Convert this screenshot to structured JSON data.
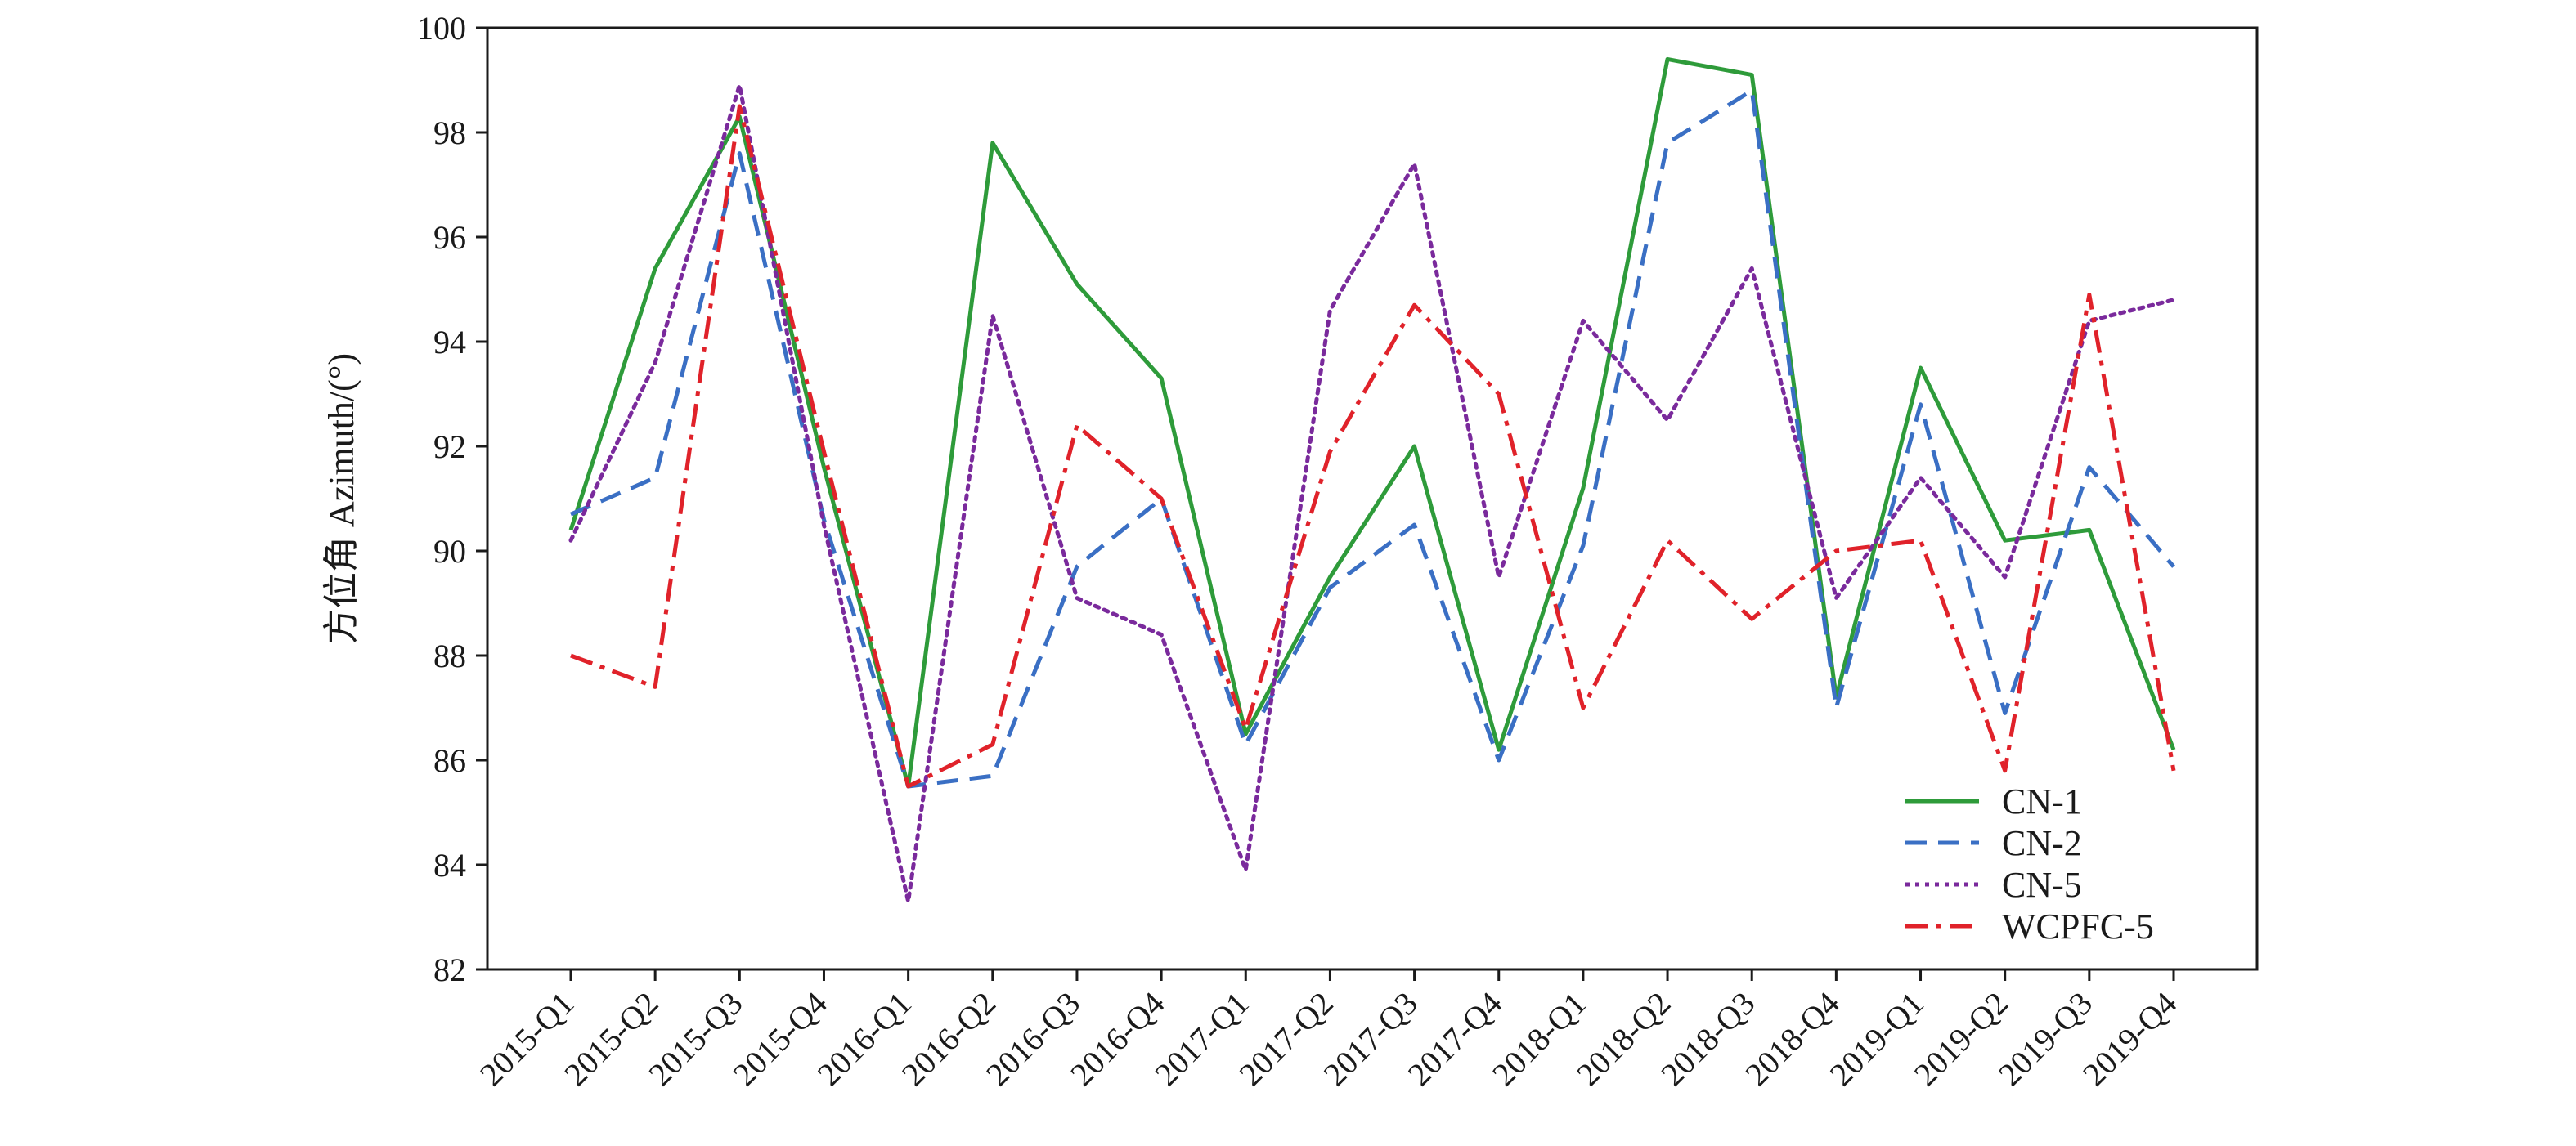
{
  "chart_data": {
    "type": "line",
    "ylabel": "方位角 Azimuth/(°)",
    "xlabel": "",
    "ylim": [
      82,
      100
    ],
    "yticks": [
      "82",
      "84",
      "86",
      "88",
      "90",
      "92",
      "94",
      "96",
      "98",
      "100"
    ],
    "categories": [
      "2015-Q1",
      "2015-Q2",
      "2015-Q3",
      "2015-Q4",
      "2016-Q1",
      "2016-Q2",
      "2016-Q3",
      "2016-Q4",
      "2017-Q1",
      "2017-Q2",
      "2017-Q3",
      "2017-Q4",
      "2018-Q1",
      "2018-Q2",
      "2018-Q3",
      "2018-Q4",
      "2019-Q1",
      "2019-Q2",
      "2019-Q3",
      "2019-Q4"
    ],
    "legend_position": "bottom-right",
    "series": [
      {
        "name": "CN-1",
        "color": "#2e9b3a",
        "dash": "solid",
        "values": [
          90.4,
          95.4,
          98.3,
          91.6,
          85.5,
          97.8,
          95.1,
          93.3,
          86.5,
          89.5,
          92.0,
          86.2,
          91.2,
          99.4,
          99.1,
          87.2,
          93.5,
          90.2,
          90.4,
          86.2
        ]
      },
      {
        "name": "CN-2",
        "color": "#3a6fc4",
        "dash": "dashed",
        "values": [
          90.7,
          91.4,
          97.6,
          90.6,
          85.5,
          85.7,
          89.7,
          91.0,
          86.3,
          89.3,
          90.5,
          86.0,
          90.1,
          97.8,
          98.8,
          87.0,
          92.8,
          86.9,
          91.6,
          89.7
        ]
      },
      {
        "name": "CN-5",
        "color": "#7a2a9c",
        "dash": "dotted",
        "values": [
          90.2,
          93.6,
          98.9,
          90.5,
          83.3,
          94.5,
          89.1,
          88.4,
          83.9,
          94.6,
          97.4,
          89.5,
          94.4,
          92.5,
          95.4,
          89.1,
          91.4,
          89.5,
          94.4,
          94.8
        ]
      },
      {
        "name": "WCPFC-5",
        "color": "#e0222a",
        "dash": "dashdot",
        "values": [
          88.0,
          87.4,
          98.5,
          91.9,
          85.5,
          86.3,
          92.4,
          91.0,
          86.6,
          91.9,
          94.7,
          93.0,
          87.0,
          90.2,
          88.7,
          90.0,
          90.2,
          85.8,
          94.9,
          85.8
        ]
      }
    ]
  }
}
